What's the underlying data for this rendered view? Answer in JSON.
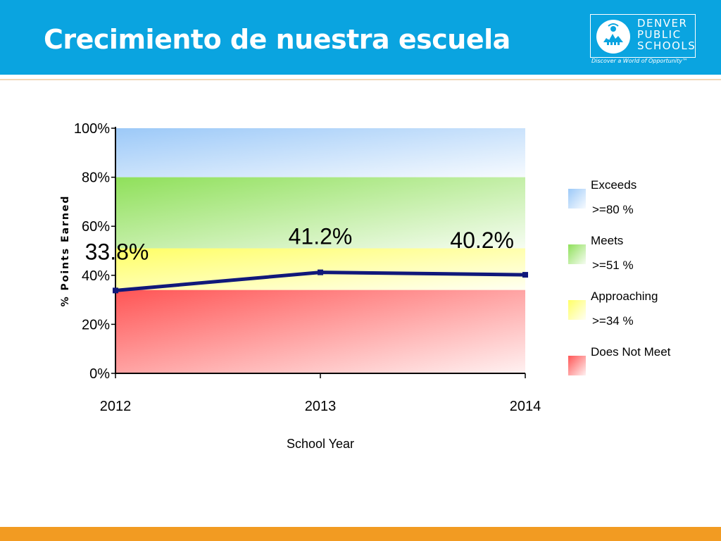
{
  "slide": {
    "title": "Crecimiento de nuestra escuela"
  },
  "logo": {
    "line1": "DENVER",
    "line2": "PUBLIC",
    "line3": "SCHOOLS",
    "tagline": "Discover a World of Opportunity™",
    "icon": "denver-skyline-emblem-icon"
  },
  "colors": {
    "header": "#0aa4e0",
    "footer": "#f29b22",
    "line": "#10187a",
    "exceeds": "#9cc9f8",
    "meets": "#8fe05a",
    "approaching": "#ffff66",
    "does_not_meet": "#ff5555"
  },
  "chart_data": {
    "type": "line",
    "categories": [
      "2012",
      "2013",
      "2014"
    ],
    "series": [
      {
        "values": [
          33.8,
          41.2,
          40.2
        ]
      }
    ],
    "data_labels": [
      "33.8%",
      "41.2%",
      "40.2%"
    ],
    "xlabel": "School Year",
    "ylabel": "% Points Earned",
    "ylim": [
      0,
      100
    ],
    "yticks": [
      "0%",
      "20%",
      "40%",
      "60%",
      "80%",
      "100%"
    ],
    "bands": [
      {
        "name": "Exceeds",
        "threshold": ">=80 %",
        "from": 80,
        "to": 100,
        "color": "#9cc9f8"
      },
      {
        "name": "Meets",
        "threshold": ">=51 %",
        "from": 51,
        "to": 80,
        "color": "#8fe05a"
      },
      {
        "name": "Approaching",
        "threshold": ">=34 %",
        "from": 34,
        "to": 51,
        "color": "#ffff66"
      },
      {
        "name": "Does Not Meet",
        "threshold": "",
        "from": 0,
        "to": 34,
        "color": "#ff5555"
      }
    ],
    "legend_position": "right"
  }
}
